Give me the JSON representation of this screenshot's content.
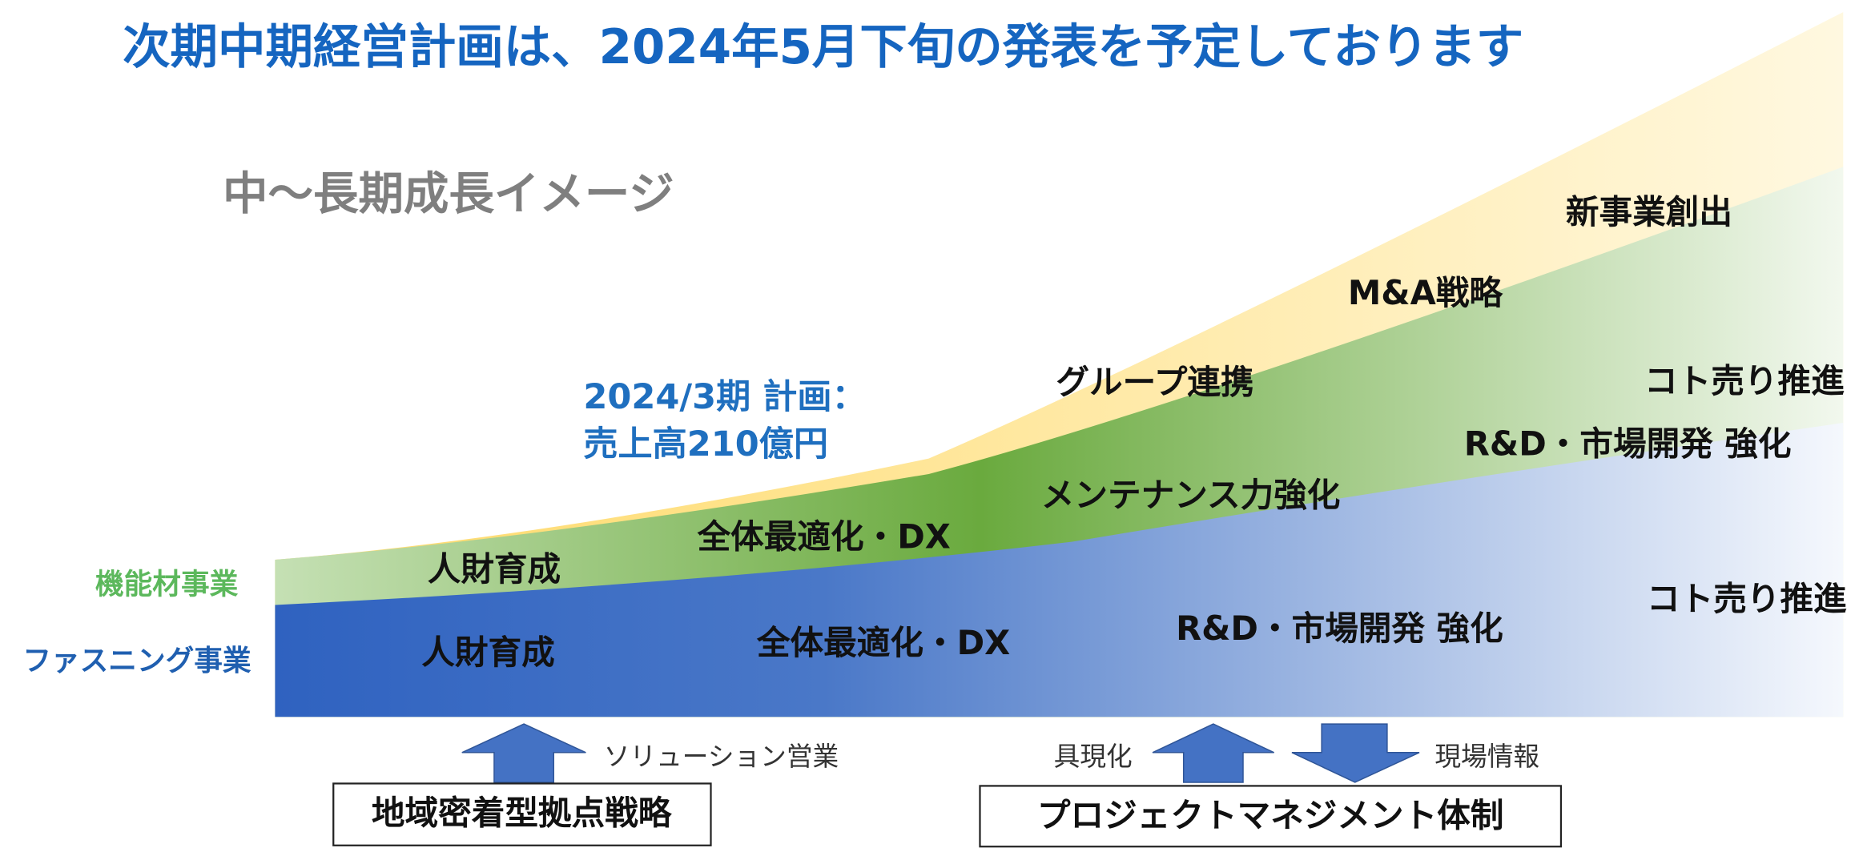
{
  "title": "次期中期経営計画は、2024年5月下旬の発表を予定しております",
  "subtitle": "中〜長期成長イメージ",
  "segments": [
    {
      "label": "機能材事業"
    },
    {
      "label": "ファスニング事業"
    }
  ],
  "annotation": [
    "2024/3期 計画：",
    "売上高210億円"
  ],
  "area_labels": [
    "人財育成",
    "全体最適化・DX",
    "メンテナンス力強化",
    "グループ連携",
    "M&A戦略",
    "新事業創出",
    "コト売り推進",
    "R&D・市場開発 強化",
    "人財育成",
    "全体最適化・DX",
    "R&D・市場開発 強化",
    "コト売り推進"
  ],
  "bottom": {
    "left_arrow_label": "ソリューション営業",
    "left_box": "地域密着型拠点戦略",
    "right_up_label": "具現化",
    "right_down_label": "現場情報",
    "right_box": "プロジェクトマネジメント体制"
  }
}
